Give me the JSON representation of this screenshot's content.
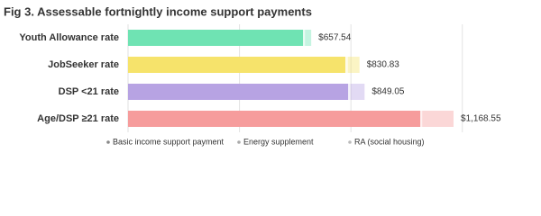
{
  "chart_data": {
    "type": "stacked-barh",
    "title": "Fig 3. Assessable fortnightly income support payments",
    "categories": [
      "Youth Allowance rate",
      "JobSeeker rate",
      "DSP <21 rate",
      "Age/DSP ≥21 rate"
    ],
    "bar_colors": [
      "#6fe3b3",
      "#f6e36b",
      "#b7a3e3",
      "#f69c9c"
    ],
    "series": [
      {
        "name": "Basic income support payment",
        "color": "#888888",
        "opacity": 1,
        "values": [
          628,
          780,
          790,
          1049
        ]
      },
      {
        "name": "Energy supplement",
        "color": "#aaaaaa",
        "opacity": 0.15,
        "values": [
          7,
          9,
          9,
          7
        ]
      },
      {
        "name": "RA (social housing)",
        "color": "#bbbbbb",
        "opacity": 0.4,
        "values": [
          22.54,
          41.83,
          50.05,
          112.55
        ]
      }
    ],
    "totals": [
      657.54,
      830.83,
      849.05,
      1168.55
    ],
    "total_labels": [
      "$657.54",
      "$830.83",
      "$849.05",
      "$1,168.55"
    ],
    "xlim": [
      0,
      1450
    ],
    "xticks": [
      0,
      400,
      800,
      1200
    ],
    "grid": true
  }
}
